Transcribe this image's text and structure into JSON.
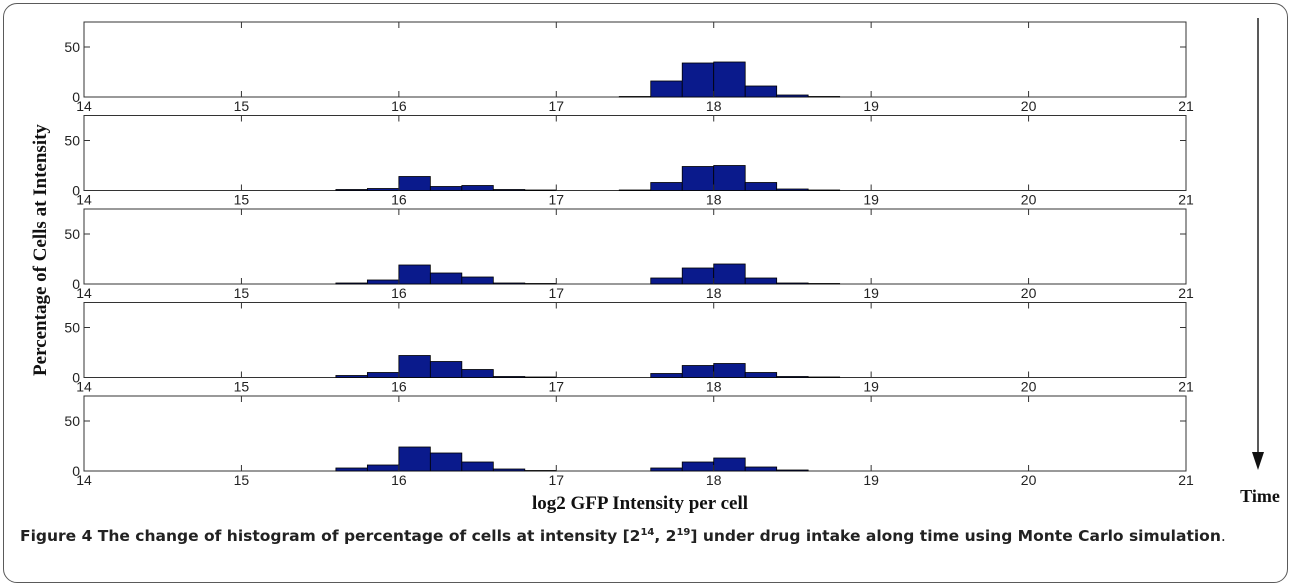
{
  "caption": {
    "figure_label": "Figure 4",
    "text_before": " The change of histogram of percentage of cells at intensity [2",
    "sup1": "14",
    "text_mid": ", 2",
    "sup2": "19",
    "text_after": "] under drug intake along time using Monte Carlo simulation",
    "end": "."
  },
  "arrow_label": "Time",
  "chart_data": {
    "type": "bar",
    "xlabel": "log2 GFP Intensity per cell",
    "ylabel": "Percentage of Cells at Intensity",
    "xlim": [
      14,
      21
    ],
    "ylim": [
      0,
      75
    ],
    "x_ticks": [
      14,
      15,
      16,
      17,
      18,
      19,
      20,
      21
    ],
    "y_ticks": [
      0,
      50
    ],
    "bin_width": 0.2,
    "bar_color": "#0a1a8c",
    "panels": [
      {
        "bins": [
          {
            "x": 17.4,
            "value": 0.5
          },
          {
            "x": 17.6,
            "value": 16
          },
          {
            "x": 17.8,
            "value": 34
          },
          {
            "x": 18.0,
            "value": 35
          },
          {
            "x": 18.2,
            "value": 11
          },
          {
            "x": 18.4,
            "value": 2
          },
          {
            "x": 18.6,
            "value": 0.5
          }
        ]
      },
      {
        "bins": [
          {
            "x": 15.6,
            "value": 1
          },
          {
            "x": 15.8,
            "value": 2
          },
          {
            "x": 16.0,
            "value": 14
          },
          {
            "x": 16.2,
            "value": 4
          },
          {
            "x": 16.4,
            "value": 5
          },
          {
            "x": 16.6,
            "value": 1
          },
          {
            "x": 16.8,
            "value": 0.5
          },
          {
            "x": 17.4,
            "value": 0.5
          },
          {
            "x": 17.6,
            "value": 8
          },
          {
            "x": 17.8,
            "value": 24
          },
          {
            "x": 18.0,
            "value": 25
          },
          {
            "x": 18.2,
            "value": 8
          },
          {
            "x": 18.4,
            "value": 1.5
          },
          {
            "x": 18.6,
            "value": 0.5
          }
        ]
      },
      {
        "bins": [
          {
            "x": 15.6,
            "value": 1
          },
          {
            "x": 15.8,
            "value": 4
          },
          {
            "x": 16.0,
            "value": 19
          },
          {
            "x": 16.2,
            "value": 11
          },
          {
            "x": 16.4,
            "value": 7
          },
          {
            "x": 16.6,
            "value": 1
          },
          {
            "x": 16.8,
            "value": 0.5
          },
          {
            "x": 17.6,
            "value": 6
          },
          {
            "x": 17.8,
            "value": 16
          },
          {
            "x": 18.0,
            "value": 20
          },
          {
            "x": 18.2,
            "value": 6
          },
          {
            "x": 18.4,
            "value": 1
          },
          {
            "x": 18.6,
            "value": 0.5
          }
        ]
      },
      {
        "bins": [
          {
            "x": 15.6,
            "value": 2
          },
          {
            "x": 15.8,
            "value": 5
          },
          {
            "x": 16.0,
            "value": 22
          },
          {
            "x": 16.2,
            "value": 16
          },
          {
            "x": 16.4,
            "value": 8
          },
          {
            "x": 16.6,
            "value": 1
          },
          {
            "x": 16.8,
            "value": 0.5
          },
          {
            "x": 17.6,
            "value": 4
          },
          {
            "x": 17.8,
            "value": 12
          },
          {
            "x": 18.0,
            "value": 14
          },
          {
            "x": 18.2,
            "value": 5
          },
          {
            "x": 18.4,
            "value": 1
          },
          {
            "x": 18.6,
            "value": 0.5
          }
        ]
      },
      {
        "bins": [
          {
            "x": 15.6,
            "value": 3
          },
          {
            "x": 15.8,
            "value": 6
          },
          {
            "x": 16.0,
            "value": 24
          },
          {
            "x": 16.2,
            "value": 18
          },
          {
            "x": 16.4,
            "value": 9
          },
          {
            "x": 16.6,
            "value": 2
          },
          {
            "x": 16.8,
            "value": 0.5
          },
          {
            "x": 17.6,
            "value": 3
          },
          {
            "x": 17.8,
            "value": 9
          },
          {
            "x": 18.0,
            "value": 13
          },
          {
            "x": 18.2,
            "value": 4
          },
          {
            "x": 18.4,
            "value": 1
          }
        ]
      }
    ]
  }
}
